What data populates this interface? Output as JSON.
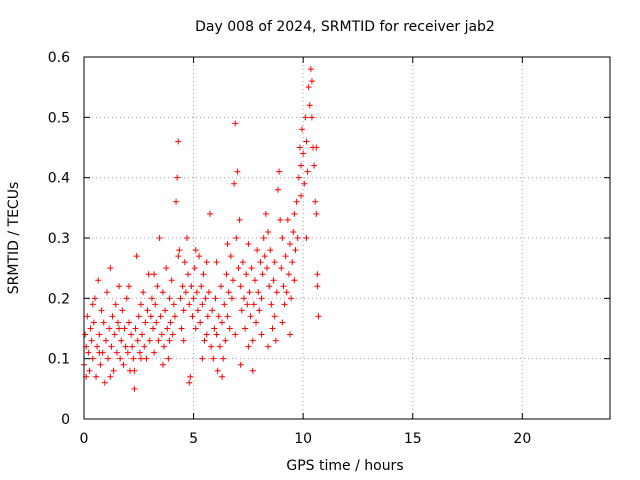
{
  "chart_data": {
    "type": "scatter",
    "title": "Day 008 of 2024, SRMTID for receiver jab2",
    "xlabel": "GPS time / hours",
    "ylabel": "SRMTID / TECUs",
    "xlim": [
      0,
      24
    ],
    "ylim": [
      0,
      0.6
    ],
    "x_ticks": [
      0,
      5,
      10,
      15,
      20
    ],
    "x_tick_labels": [
      "0",
      "5",
      "10",
      "15",
      "20"
    ],
    "y_ticks": [
      0,
      0.1,
      0.2,
      0.3,
      0.4,
      0.5,
      0.6
    ],
    "y_tick_labels": [
      "0",
      "0.1",
      "0.2",
      "0.3",
      "0.4",
      "0.5",
      "0.6"
    ],
    "grid": true,
    "marker": "+",
    "series_color": "#ff0000",
    "series": [
      {
        "name": "jab2",
        "points": [
          [
            0.0,
            0.09
          ],
          [
            0.05,
            0.14
          ],
          [
            0.1,
            0.12
          ],
          [
            0.15,
            0.17
          ],
          [
            0.2,
            0.11
          ],
          [
            0.25,
            0.08
          ],
          [
            0.3,
            0.15
          ],
          [
            0.35,
            0.13
          ],
          [
            0.4,
            0.1
          ],
          [
            0.45,
            0.16
          ],
          [
            0.5,
            0.2
          ],
          [
            0.55,
            0.07
          ],
          [
            0.6,
            0.12
          ],
          [
            0.65,
            0.23
          ],
          [
            0.7,
            0.14
          ],
          [
            0.75,
            0.09
          ],
          [
            0.8,
            0.18
          ],
          [
            0.85,
            0.11
          ],
          [
            0.9,
            0.16
          ],
          [
            0.95,
            0.06
          ],
          [
            1.0,
            0.13
          ],
          [
            1.05,
            0.21
          ],
          [
            1.1,
            0.1
          ],
          [
            1.15,
            0.15
          ],
          [
            1.2,
            0.25
          ],
          [
            1.25,
            0.12
          ],
          [
            1.3,
            0.17
          ],
          [
            1.35,
            0.08
          ],
          [
            1.4,
            0.14
          ],
          [
            1.45,
            0.19
          ],
          [
            1.5,
            0.11
          ],
          [
            1.55,
            0.16
          ],
          [
            1.6,
            0.22
          ],
          [
            1.65,
            0.1
          ],
          [
            1.7,
            0.13
          ],
          [
            1.75,
            0.18
          ],
          [
            1.8,
            0.09
          ],
          [
            1.85,
            0.15
          ],
          [
            1.9,
            0.12
          ],
          [
            1.95,
            0.2
          ],
          [
            2.0,
            0.11
          ],
          [
            2.05,
            0.16
          ],
          [
            2.1,
            0.08
          ],
          [
            2.15,
            0.14
          ],
          [
            2.2,
            0.12
          ],
          [
            2.25,
            0.1
          ],
          [
            2.3,
            0.05
          ],
          [
            2.35,
            0.15
          ],
          [
            2.4,
            0.27
          ],
          [
            2.45,
            0.13
          ],
          [
            2.5,
            0.17
          ],
          [
            2.55,
            0.11
          ],
          [
            2.6,
            0.19
          ],
          [
            2.65,
            0.14
          ],
          [
            2.7,
            0.21
          ],
          [
            2.75,
            0.12
          ],
          [
            2.8,
            0.16
          ],
          [
            2.85,
            0.1
          ],
          [
            2.9,
            0.18
          ],
          [
            2.95,
            0.24
          ],
          [
            3.0,
            0.13
          ],
          [
            3.05,
            0.17
          ],
          [
            3.1,
            0.2
          ],
          [
            3.15,
            0.15
          ],
          [
            3.2,
            0.11
          ],
          [
            3.25,
            0.19
          ],
          [
            3.3,
            0.16
          ],
          [
            3.35,
            0.22
          ],
          [
            3.4,
            0.13
          ],
          [
            3.45,
            0.3
          ],
          [
            3.5,
            0.17
          ],
          [
            3.55,
            0.14
          ],
          [
            3.6,
            0.21
          ],
          [
            3.65,
            0.12
          ],
          [
            3.7,
            0.18
          ],
          [
            3.75,
            0.25
          ],
          [
            3.8,
            0.15
          ],
          [
            3.85,
            0.1
          ],
          [
            3.9,
            0.2
          ],
          [
            3.95,
            0.16
          ],
          [
            4.0,
            0.23
          ],
          [
            4.05,
            0.14
          ],
          [
            4.1,
            0.19
          ],
          [
            4.15,
            0.17
          ],
          [
            4.2,
            0.36
          ],
          [
            4.25,
            0.4
          ],
          [
            4.3,
            0.46
          ],
          [
            4.35,
            0.28
          ],
          [
            4.4,
            0.2
          ],
          [
            4.45,
            0.15
          ],
          [
            4.5,
            0.22
          ],
          [
            4.55,
            0.18
          ],
          [
            4.6,
            0.26
          ],
          [
            4.65,
            0.21
          ],
          [
            4.7,
            0.3
          ],
          [
            4.75,
            0.24
          ],
          [
            4.8,
            0.19
          ],
          [
            4.85,
            0.07
          ],
          [
            4.9,
            0.22
          ],
          [
            4.95,
            0.17
          ],
          [
            5.0,
            0.2
          ],
          [
            5.05,
            0.25
          ],
          [
            5.1,
            0.15
          ],
          [
            5.15,
            0.21
          ],
          [
            5.2,
            0.18
          ],
          [
            5.25,
            0.27
          ],
          [
            5.3,
            0.16
          ],
          [
            5.35,
            0.22
          ],
          [
            5.4,
            0.19
          ],
          [
            5.45,
            0.24
          ],
          [
            5.5,
            0.13
          ],
          [
            5.55,
            0.2
          ],
          [
            5.6,
            0.26
          ],
          [
            5.65,
            0.17
          ],
          [
            5.7,
            0.21
          ],
          [
            5.75,
            0.34
          ],
          [
            5.8,
            0.12
          ],
          [
            5.85,
            0.18
          ],
          [
            5.9,
            0.1
          ],
          [
            5.95,
            0.15
          ],
          [
            6.0,
            0.2
          ],
          [
            6.05,
            0.14
          ],
          [
            6.1,
            0.08
          ],
          [
            6.15,
            0.17
          ],
          [
            6.2,
            0.12
          ],
          [
            6.25,
            0.22
          ],
          [
            6.3,
            0.16
          ],
          [
            6.35,
            0.1
          ],
          [
            6.4,
            0.19
          ],
          [
            6.45,
            0.13
          ],
          [
            6.5,
            0.24
          ],
          [
            6.55,
            0.17
          ],
          [
            6.6,
            0.21
          ],
          [
            6.65,
            0.15
          ],
          [
            6.7,
            0.27
          ],
          [
            6.75,
            0.2
          ],
          [
            6.8,
            0.23
          ],
          [
            6.85,
            0.39
          ],
          [
            6.9,
            0.49
          ],
          [
            6.95,
            0.3
          ],
          [
            7.0,
            0.41
          ],
          [
            7.05,
            0.25
          ],
          [
            7.1,
            0.33
          ],
          [
            7.15,
            0.22
          ],
          [
            7.2,
            0.18
          ],
          [
            7.25,
            0.26
          ],
          [
            7.3,
            0.2
          ],
          [
            7.35,
            0.15
          ],
          [
            7.4,
            0.24
          ],
          [
            7.45,
            0.19
          ],
          [
            7.5,
            0.12
          ],
          [
            7.55,
            0.21
          ],
          [
            7.6,
            0.17
          ],
          [
            7.65,
            0.25
          ],
          [
            7.7,
            0.13
          ],
          [
            7.75,
            0.19
          ],
          [
            7.8,
            0.23
          ],
          [
            7.85,
            0.16
          ],
          [
            7.9,
            0.28
          ],
          [
            7.95,
            0.21
          ],
          [
            8.0,
            0.18
          ],
          [
            8.05,
            0.26
          ],
          [
            8.1,
            0.2
          ],
          [
            8.15,
            0.24
          ],
          [
            8.2,
            0.3
          ],
          [
            8.25,
            0.27
          ],
          [
            8.3,
            0.34
          ],
          [
            8.35,
            0.25
          ],
          [
            8.4,
            0.31
          ],
          [
            8.45,
            0.22
          ],
          [
            8.5,
            0.28
          ],
          [
            8.55,
            0.19
          ],
          [
            8.6,
            0.15
          ],
          [
            8.65,
            0.23
          ],
          [
            8.7,
            0.17
          ],
          [
            8.75,
            0.13
          ],
          [
            8.8,
            0.21
          ],
          [
            8.85,
            0.38
          ],
          [
            8.9,
            0.41
          ],
          [
            8.95,
            0.33
          ],
          [
            9.0,
            0.25
          ],
          [
            9.05,
            0.3
          ],
          [
            9.1,
            0.22
          ],
          [
            9.15,
            0.19
          ],
          [
            9.2,
            0.27
          ],
          [
            9.25,
            0.21
          ],
          [
            9.3,
            0.33
          ],
          [
            9.35,
            0.24
          ],
          [
            9.4,
            0.29
          ],
          [
            9.45,
            0.2
          ],
          [
            9.5,
            0.26
          ],
          [
            9.55,
            0.31
          ],
          [
            9.6,
            0.23
          ],
          [
            9.65,
            0.28
          ],
          [
            9.7,
            0.36
          ],
          [
            9.75,
            0.3
          ],
          [
            9.8,
            0.4
          ],
          [
            9.85,
            0.45
          ],
          [
            9.9,
            0.42
          ],
          [
            9.95,
            0.48
          ],
          [
            10.0,
            0.44
          ],
          [
            10.05,
            0.39
          ],
          [
            10.1,
            0.5
          ],
          [
            10.15,
            0.46
          ],
          [
            10.2,
            0.41
          ],
          [
            10.25,
            0.55
          ],
          [
            10.3,
            0.52
          ],
          [
            10.35,
            0.58
          ],
          [
            10.4,
            0.5
          ],
          [
            10.45,
            0.45
          ],
          [
            10.5,
            0.42
          ],
          [
            10.55,
            0.36
          ],
          [
            10.6,
            0.34
          ],
          [
            10.65,
            0.24
          ],
          [
            10.7,
            0.17
          ],
          [
            0.1,
            0.07
          ],
          [
            0.4,
            0.19
          ],
          [
            0.7,
            0.11
          ],
          [
            1.2,
            0.07
          ],
          [
            1.6,
            0.15
          ],
          [
            2.05,
            0.22
          ],
          [
            2.3,
            0.08
          ],
          [
            2.6,
            0.1
          ],
          [
            3.2,
            0.24
          ],
          [
            3.6,
            0.09
          ],
          [
            3.9,
            0.13
          ],
          [
            4.3,
            0.27
          ],
          [
            4.55,
            0.13
          ],
          [
            4.8,
            0.06
          ],
          [
            5.1,
            0.28
          ],
          [
            5.4,
            0.1
          ],
          [
            5.6,
            0.14
          ],
          [
            6.05,
            0.26
          ],
          [
            6.3,
            0.07
          ],
          [
            6.55,
            0.29
          ],
          [
            6.9,
            0.14
          ],
          [
            7.15,
            0.09
          ],
          [
            7.5,
            0.29
          ],
          [
            7.7,
            0.08
          ],
          [
            8.1,
            0.14
          ],
          [
            8.4,
            0.12
          ],
          [
            8.7,
            0.26
          ],
          [
            9.05,
            0.16
          ],
          [
            9.4,
            0.14
          ],
          [
            9.6,
            0.34
          ],
          [
            9.9,
            0.37
          ],
          [
            10.15,
            0.3
          ],
          [
            10.4,
            0.56
          ],
          [
            10.6,
            0.45
          ],
          [
            10.65,
            0.22
          ]
        ]
      }
    ]
  }
}
